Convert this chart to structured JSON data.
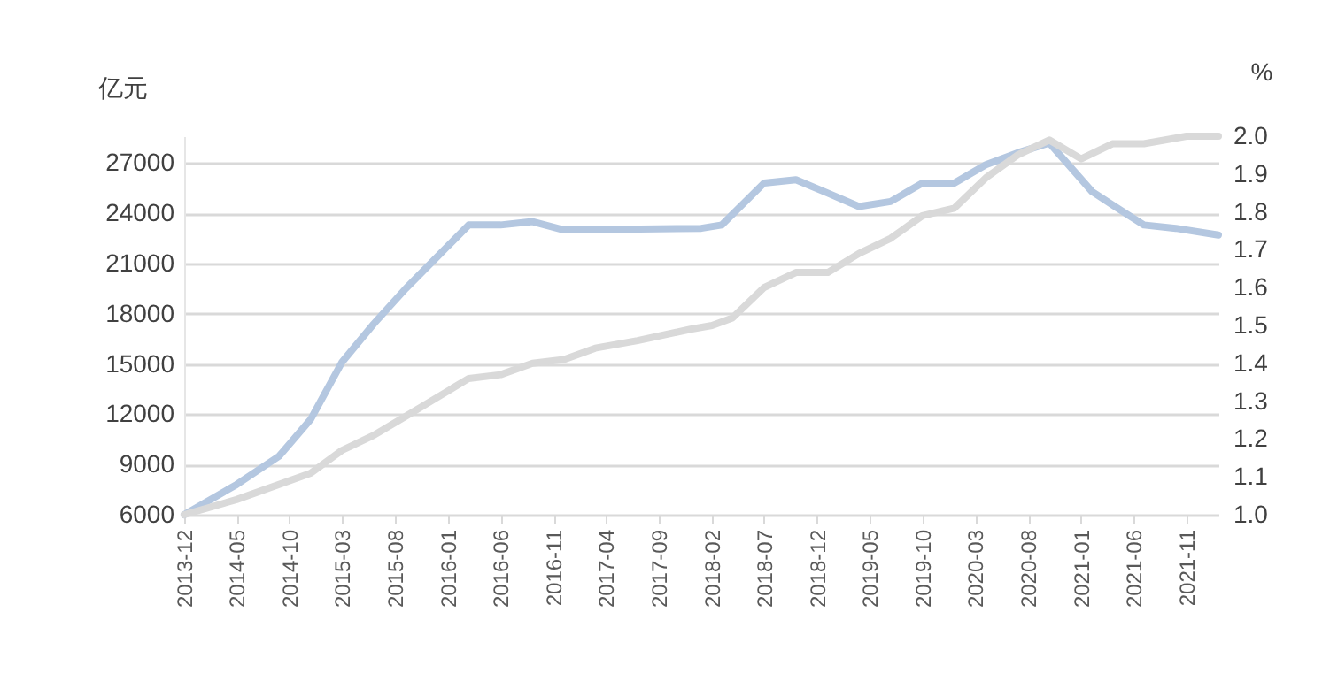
{
  "chart_data": {
    "type": "line",
    "ylabel": "亿元",
    "y2label": "%",
    "xlim": [
      "2013-12",
      "2022-02"
    ],
    "xticks": [
      "2013-12",
      "2014-05",
      "2014-10",
      "2015-03",
      "2015-08",
      "2016-01",
      "2016-06",
      "2016-11",
      "2017-04",
      "2017-09",
      "2018-02",
      "2018-07",
      "2018-12",
      "2019-05",
      "2019-10",
      "2020-03",
      "2020-08",
      "2021-01",
      "2021-06",
      "2021-11"
    ],
    "ylim": [
      6000,
      28600
    ],
    "yticks": [
      6000,
      9000,
      12000,
      15000,
      18000,
      21000,
      24000,
      27000
    ],
    "y2lim": [
      1.0,
      2.0
    ],
    "y2ticks": [
      {
        "value": 1.0,
        "label": "1.0"
      },
      1.1,
      1.2,
      1.3,
      1.4,
      1.5,
      1.6,
      1.7,
      1.8,
      1.9,
      {
        "value": 2.0,
        "label": "2.0"
      }
    ],
    "grid": "y",
    "line_style": "solid",
    "series": [
      {
        "color": "#b4c7e0",
        "x": [
          "2013-12",
          "2014-05",
          "2014-09",
          "2014-12",
          "2015-03",
          "2015-06",
          "2015-09",
          "2015-12",
          "2016-03",
          "2016-06",
          "2016-09",
          "2016-12",
          "2018-01",
          "2018-03",
          "2018-07",
          "2018-10",
          "2019-01",
          "2019-04",
          "2019-07",
          "2019-10",
          "2020-01",
          "2020-04",
          "2020-07",
          "2020-10",
          "2021-02",
          "2021-04",
          "2021-07",
          "2021-10",
          "2022-02"
        ],
        "values": [
          6000,
          7800,
          9500,
          11700,
          15100,
          17400,
          19500,
          21400,
          23300,
          23300,
          23500,
          23000,
          23100,
          23300,
          25800,
          26000,
          25200,
          24400,
          24700,
          25800,
          25800,
          26900,
          27600,
          28200,
          25300,
          24500,
          23300,
          23100,
          22700
        ]
      },
      {
        "color": "#d9d9d9",
        "axis": "y2",
        "x": [
          "2013-12",
          "2014-05",
          "2014-12",
          "2015-03",
          "2015-06",
          "2015-09",
          "2015-12",
          "2016-03",
          "2016-06",
          "2016-09",
          "2016-12",
          "2017-03",
          "2017-07",
          "2017-12",
          "2018-02",
          "2018-04",
          "2018-07",
          "2018-10",
          "2019-01",
          "2019-04",
          "2019-07",
          "2019-10",
          "2020-01",
          "2020-04",
          "2020-07",
          "2020-10",
          "2021-01",
          "2021-04",
          "2021-07",
          "2021-11",
          "2022-02"
        ],
        "values": [
          1.0,
          1.04,
          1.11,
          1.17,
          1.21,
          1.26,
          1.31,
          1.36,
          1.37,
          1.4,
          1.41,
          1.44,
          1.46,
          1.49,
          1.5,
          1.52,
          1.6,
          1.64,
          1.64,
          1.69,
          1.73,
          1.79,
          1.81,
          1.89,
          1.95,
          1.99,
          1.94,
          1.98,
          1.98,
          2.0,
          2.0
        ]
      }
    ]
  }
}
